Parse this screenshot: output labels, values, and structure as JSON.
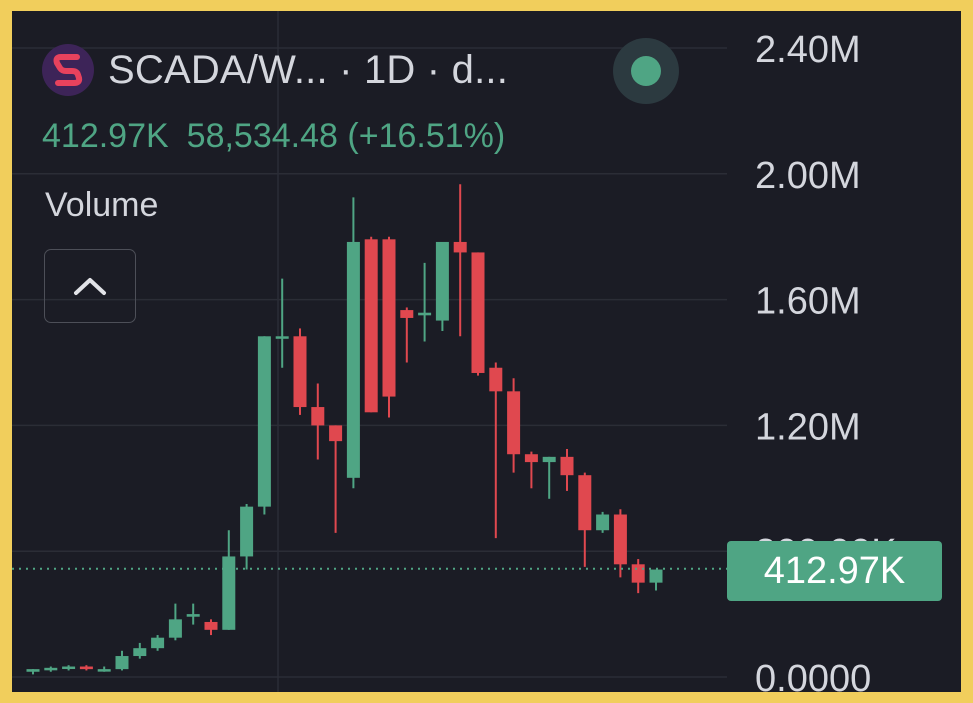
{
  "header": {
    "symbol": "SCADA/W... · 1D · d...",
    "logo_icon": "scada-s-logo-icon",
    "live_icon": "live-status-dot-icon",
    "current_volume": "412.97K",
    "change_text": "58,534.48 (+16.51%)",
    "indicator_name": "Volume",
    "collapse_icon": "chevron-up-icon"
  },
  "price_label": "412.97K",
  "colors": {
    "background": "#1b1c25",
    "frame": "#f1ce5c",
    "up": "#4fa584",
    "down": "#e0484f",
    "grid": "#2b2d36",
    "text": "#d4d6dd"
  },
  "chart_data": {
    "type": "candlestick",
    "interval": "1D",
    "y_ticks": [
      "2.40M",
      "2.00M",
      "1.60M",
      "1.20M",
      "800.00K",
      "0.0000"
    ],
    "ylim": [
      0,
      2400000
    ],
    "current_value": 412970,
    "grid": true,
    "candles": [
      {
        "o": 20000,
        "h": 30000,
        "l": 10000,
        "c": 30000
      },
      {
        "o": 30000,
        "h": 40000,
        "l": 20000,
        "c": 35000
      },
      {
        "o": 35000,
        "h": 45000,
        "l": 25000,
        "c": 40000
      },
      {
        "o": 40000,
        "h": 45000,
        "l": 25000,
        "c": 30000
      },
      {
        "o": 30000,
        "h": 40000,
        "l": 20000,
        "c": 30000
      },
      {
        "o": 30000,
        "h": 100000,
        "l": 25000,
        "c": 80000
      },
      {
        "o": 80000,
        "h": 130000,
        "l": 70000,
        "c": 110000
      },
      {
        "o": 110000,
        "h": 160000,
        "l": 100000,
        "c": 150000
      },
      {
        "o": 150000,
        "h": 280000,
        "l": 140000,
        "c": 220000
      },
      {
        "o": 230000,
        "h": 280000,
        "l": 200000,
        "c": 240000
      },
      {
        "o": 210000,
        "h": 220000,
        "l": 160000,
        "c": 180000
      },
      {
        "o": 180000,
        "h": 560000,
        "l": 180000,
        "c": 460000
      },
      {
        "o": 460000,
        "h": 660000,
        "l": 410000,
        "c": 650000
      },
      {
        "o": 650000,
        "h": 1300000,
        "l": 620000,
        "c": 1300000
      },
      {
        "o": 1300000,
        "h": 1520000,
        "l": 1180000,
        "c": 1300000
      },
      {
        "o": 1300000,
        "h": 1330000,
        "l": 1000000,
        "c": 1030000
      },
      {
        "o": 1030000,
        "h": 1120000,
        "l": 830000,
        "c": 960000
      },
      {
        "o": 960000,
        "h": 960000,
        "l": 550000,
        "c": 900000
      },
      {
        "o": 760000,
        "h": 1830000,
        "l": 720000,
        "c": 1660000
      },
      {
        "o": 1670000,
        "h": 1680000,
        "l": 1010000,
        "c": 1010000
      },
      {
        "o": 1670000,
        "h": 1680000,
        "l": 990000,
        "c": 1070000
      },
      {
        "o": 1400000,
        "h": 1410000,
        "l": 1200000,
        "c": 1370000
      },
      {
        "o": 1380000,
        "h": 1580000,
        "l": 1280000,
        "c": 1390000
      },
      {
        "o": 1360000,
        "h": 1660000,
        "l": 1320000,
        "c": 1660000
      },
      {
        "o": 1660000,
        "h": 1880000,
        "l": 1300000,
        "c": 1620000
      },
      {
        "o": 1620000,
        "h": 1620000,
        "l": 1150000,
        "c": 1160000
      },
      {
        "o": 1180000,
        "h": 1200000,
        "l": 530000,
        "c": 1090000
      },
      {
        "o": 1090000,
        "h": 1140000,
        "l": 780000,
        "c": 850000
      },
      {
        "o": 850000,
        "h": 860000,
        "l": 720000,
        "c": 820000
      },
      {
        "o": 820000,
        "h": 840000,
        "l": 680000,
        "c": 840000
      },
      {
        "o": 840000,
        "h": 870000,
        "l": 710000,
        "c": 770000
      },
      {
        "o": 770000,
        "h": 780000,
        "l": 420000,
        "c": 560000
      },
      {
        "o": 560000,
        "h": 630000,
        "l": 550000,
        "c": 620000
      },
      {
        "o": 620000,
        "h": 640000,
        "l": 380000,
        "c": 430000
      },
      {
        "o": 430000,
        "h": 450000,
        "l": 320000,
        "c": 360000
      },
      {
        "o": 360000,
        "h": 410000,
        "l": 330000,
        "c": 410000
      }
    ]
  }
}
